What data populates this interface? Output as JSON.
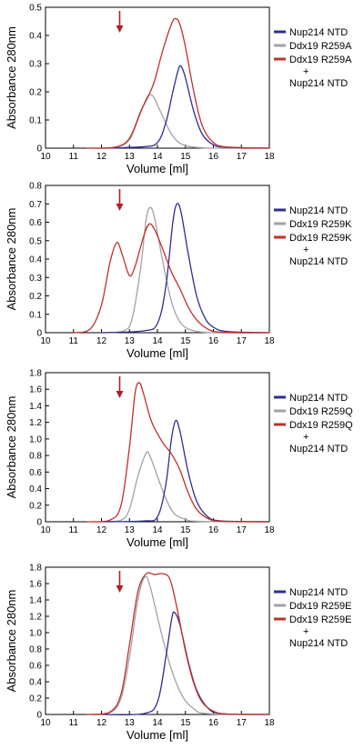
{
  "colors": {
    "nup": "#2e2f8f",
    "ddx": "#a3a3a3",
    "complex": "#c0302a",
    "arrow": "#b01e2a",
    "axis": "#000000"
  },
  "chart_data": [
    {
      "type": "line",
      "xlabel": "Volume [ml]",
      "ylabel": "Absorbance 280nm",
      "xlim": [
        10,
        18
      ],
      "ylim": [
        0,
        0.5
      ],
      "x_ticks": [
        "10",
        "11",
        "12",
        "13",
        "14",
        "15",
        "16",
        "17",
        "18"
      ],
      "y_ticks": [
        "0",
        "0.1",
        "0.2",
        "0.3",
        "0.4",
        "0.5"
      ],
      "arrow_x": 12.65,
      "series": [
        {
          "name": "Nup214 NTD",
          "color_key": "nup",
          "points": [
            [
              12,
              0
            ],
            [
              13.5,
              0.005
            ],
            [
              14,
              0.02
            ],
            [
              14.3,
              0.09
            ],
            [
              14.55,
              0.2
            ],
            [
              14.75,
              0.28
            ],
            [
              14.85,
              0.29
            ],
            [
              15,
              0.25
            ],
            [
              15.3,
              0.13
            ],
            [
              15.6,
              0.05
            ],
            [
              16,
              0.012
            ],
            [
              16.5,
              0.003
            ],
            [
              18,
              0
            ]
          ]
        },
        {
          "name": "Ddx19 R259A",
          "color_key": "ddx",
          "points": [
            [
              11.5,
              0
            ],
            [
              12.5,
              0.003
            ],
            [
              13,
              0.03
            ],
            [
              13.3,
              0.1
            ],
            [
              13.6,
              0.175
            ],
            [
              13.75,
              0.19
            ],
            [
              13.9,
              0.175
            ],
            [
              14.2,
              0.11
            ],
            [
              14.5,
              0.05
            ],
            [
              14.8,
              0.018
            ],
            [
              15.2,
              0.005
            ],
            [
              16,
              0
            ],
            [
              18,
              0
            ]
          ]
        },
        {
          "name": "Ddx19 R259A\n+\nNup214 NTD",
          "color_key": "complex",
          "points": [
            [
              11.5,
              0
            ],
            [
              12.5,
              0.004
            ],
            [
              13,
              0.035
            ],
            [
              13.4,
              0.13
            ],
            [
              13.7,
              0.19
            ],
            [
              13.9,
              0.24
            ],
            [
              14.2,
              0.35
            ],
            [
              14.5,
              0.44
            ],
            [
              14.65,
              0.46
            ],
            [
              14.8,
              0.44
            ],
            [
              15.0,
              0.36
            ],
            [
              15.3,
              0.2
            ],
            [
              15.6,
              0.08
            ],
            [
              16,
              0.02
            ],
            [
              16.5,
              0.004
            ],
            [
              18,
              0
            ]
          ]
        }
      ]
    },
    {
      "type": "line",
      "xlabel": "Volume [ml]",
      "ylabel": "Absorbance 280nm",
      "xlim": [
        10,
        18
      ],
      "ylim": [
        0,
        0.8
      ],
      "x_ticks": [
        "10",
        "11",
        "12",
        "13",
        "14",
        "15",
        "16",
        "17",
        "18"
      ],
      "y_ticks": [
        "0",
        "0.1",
        "0.2",
        "0.3",
        "0.4",
        "0.5",
        "0.6",
        "0.7",
        "0.8"
      ],
      "arrow_x": 12.65,
      "series": [
        {
          "name": "Nup214 NTD",
          "color_key": "nup",
          "points": [
            [
              12,
              0
            ],
            [
              13.5,
              0.01
            ],
            [
              14,
              0.05
            ],
            [
              14.3,
              0.25
            ],
            [
              14.55,
              0.6
            ],
            [
              14.7,
              0.7
            ],
            [
              14.85,
              0.65
            ],
            [
              15.1,
              0.43
            ],
            [
              15.4,
              0.2
            ],
            [
              15.7,
              0.08
            ],
            [
              16,
              0.03
            ],
            [
              16.5,
              0.006
            ],
            [
              18,
              0
            ]
          ]
        },
        {
          "name": "Ddx19 R259K",
          "color_key": "ddx",
          "points": [
            [
              12,
              0
            ],
            [
              12.8,
              0.01
            ],
            [
              13.1,
              0.08
            ],
            [
              13.4,
              0.35
            ],
            [
              13.6,
              0.62
            ],
            [
              13.75,
              0.68
            ],
            [
              13.9,
              0.62
            ],
            [
              14.2,
              0.38
            ],
            [
              14.5,
              0.17
            ],
            [
              14.8,
              0.06
            ],
            [
              15.2,
              0.015
            ],
            [
              16,
              0
            ],
            [
              18,
              0
            ]
          ]
        },
        {
          "name": "Ddx19 R259K\n+\nNup214 NTD",
          "color_key": "complex",
          "points": [
            [
              11,
              0
            ],
            [
              11.6,
              0.02
            ],
            [
              12,
              0.15
            ],
            [
              12.3,
              0.38
            ],
            [
              12.55,
              0.49
            ],
            [
              12.75,
              0.42
            ],
            [
              13,
              0.31
            ],
            [
              13.2,
              0.36
            ],
            [
              13.5,
              0.52
            ],
            [
              13.7,
              0.59
            ],
            [
              13.9,
              0.56
            ],
            [
              14.2,
              0.45
            ],
            [
              14.5,
              0.33
            ],
            [
              14.8,
              0.24
            ],
            [
              15.1,
              0.14
            ],
            [
              15.4,
              0.07
            ],
            [
              15.8,
              0.02
            ],
            [
              16.3,
              0.003
            ],
            [
              18,
              0
            ]
          ]
        }
      ]
    },
    {
      "type": "line",
      "xlabel": "Volume [ml]",
      "ylabel": "Absorbance 280nm",
      "xlim": [
        10,
        18
      ],
      "ylim": [
        0,
        1.8
      ],
      "x_ticks": [
        "10",
        "11",
        "12",
        "13",
        "14",
        "15",
        "16",
        "17",
        "18"
      ],
      "y_ticks": [
        "0",
        "0.2",
        "0.4",
        "0.6",
        "0.8",
        "1.0",
        "1.2",
        "1.4",
        "1.6",
        "1.8"
      ],
      "arrow_x": 12.65,
      "series": [
        {
          "name": "Nup214 NTD",
          "color_key": "nup",
          "points": [
            [
              12,
              0
            ],
            [
              13.5,
              0.01
            ],
            [
              14,
              0.06
            ],
            [
              14.3,
              0.45
            ],
            [
              14.5,
              1.0
            ],
            [
              14.65,
              1.22
            ],
            [
              14.8,
              1.1
            ],
            [
              15.1,
              0.6
            ],
            [
              15.4,
              0.25
            ],
            [
              15.8,
              0.06
            ],
            [
              16.3,
              0.01
            ],
            [
              18,
              0
            ]
          ]
        },
        {
          "name": "Ddx19 R259Q",
          "color_key": "ddx",
          "points": [
            [
              12,
              0
            ],
            [
              12.7,
              0.02
            ],
            [
              13,
              0.15
            ],
            [
              13.3,
              0.55
            ],
            [
              13.6,
              0.83
            ],
            [
              13.75,
              0.78
            ],
            [
              14,
              0.55
            ],
            [
              14.3,
              0.28
            ],
            [
              14.6,
              0.1
            ],
            [
              15,
              0.03
            ],
            [
              15.5,
              0.005
            ],
            [
              18,
              0
            ]
          ]
        },
        {
          "name": "Ddx19 R259Q\n+\nNup214 NTD",
          "color_key": "complex",
          "points": [
            [
              11.5,
              0
            ],
            [
              12.3,
              0.02
            ],
            [
              12.7,
              0.2
            ],
            [
              13,
              0.9
            ],
            [
              13.2,
              1.55
            ],
            [
              13.35,
              1.68
            ],
            [
              13.5,
              1.55
            ],
            [
              13.8,
              1.2
            ],
            [
              14.2,
              0.95
            ],
            [
              14.5,
              0.82
            ],
            [
              14.8,
              0.63
            ],
            [
              15.1,
              0.35
            ],
            [
              15.4,
              0.15
            ],
            [
              15.8,
              0.04
            ],
            [
              16.3,
              0.005
            ],
            [
              18,
              0
            ]
          ]
        }
      ]
    },
    {
      "type": "line",
      "xlabel": "Volume [ml]",
      "ylabel": "Absorbance 280nm",
      "xlim": [
        10,
        18
      ],
      "ylim": [
        0,
        1.8
      ],
      "x_ticks": [
        "10",
        "11",
        "12",
        "13",
        "14",
        "15",
        "16",
        "17",
        "18"
      ],
      "y_ticks": [
        "0",
        "0.2",
        "0.4",
        "0.6",
        "0.8",
        "1.0",
        "1.2",
        "1.4",
        "1.6",
        "1.8"
      ],
      "arrow_x": 12.65,
      "series": [
        {
          "name": "Nup214 NTD",
          "color_key": "nup",
          "points": [
            [
              12,
              0
            ],
            [
              13.5,
              0.01
            ],
            [
              14,
              0.15
            ],
            [
              14.3,
              0.7
            ],
            [
              14.5,
              1.15
            ],
            [
              14.6,
              1.25
            ],
            [
              14.8,
              1.1
            ],
            [
              15.1,
              0.65
            ],
            [
              15.4,
              0.3
            ],
            [
              15.8,
              0.08
            ],
            [
              16.3,
              0.01
            ],
            [
              18,
              0
            ]
          ]
        },
        {
          "name": "Ddx19 R259E",
          "color_key": "ddx",
          "points": [
            [
              11.5,
              0
            ],
            [
              12.3,
              0.02
            ],
            [
              12.7,
              0.2
            ],
            [
              13,
              0.7
            ],
            [
              13.3,
              1.4
            ],
            [
              13.55,
              1.68
            ],
            [
              13.75,
              1.55
            ],
            [
              14.1,
              1.05
            ],
            [
              14.5,
              0.55
            ],
            [
              14.9,
              0.22
            ],
            [
              15.3,
              0.07
            ],
            [
              15.8,
              0.01
            ],
            [
              18,
              0
            ]
          ]
        },
        {
          "name": "Ddx19 R259E\n+\nNup214 NTD",
          "color_key": "complex",
          "points": [
            [
              11.5,
              0
            ],
            [
              12.3,
              0.03
            ],
            [
              12.7,
              0.25
            ],
            [
              13,
              0.85
            ],
            [
              13.3,
              1.5
            ],
            [
              13.6,
              1.72
            ],
            [
              13.9,
              1.71
            ],
            [
              14.2,
              1.72
            ],
            [
              14.45,
              1.65
            ],
            [
              14.7,
              1.3
            ],
            [
              15,
              0.78
            ],
            [
              15.3,
              0.38
            ],
            [
              15.6,
              0.15
            ],
            [
              16,
              0.04
            ],
            [
              16.5,
              0.005
            ],
            [
              18,
              0
            ]
          ]
        }
      ]
    }
  ]
}
